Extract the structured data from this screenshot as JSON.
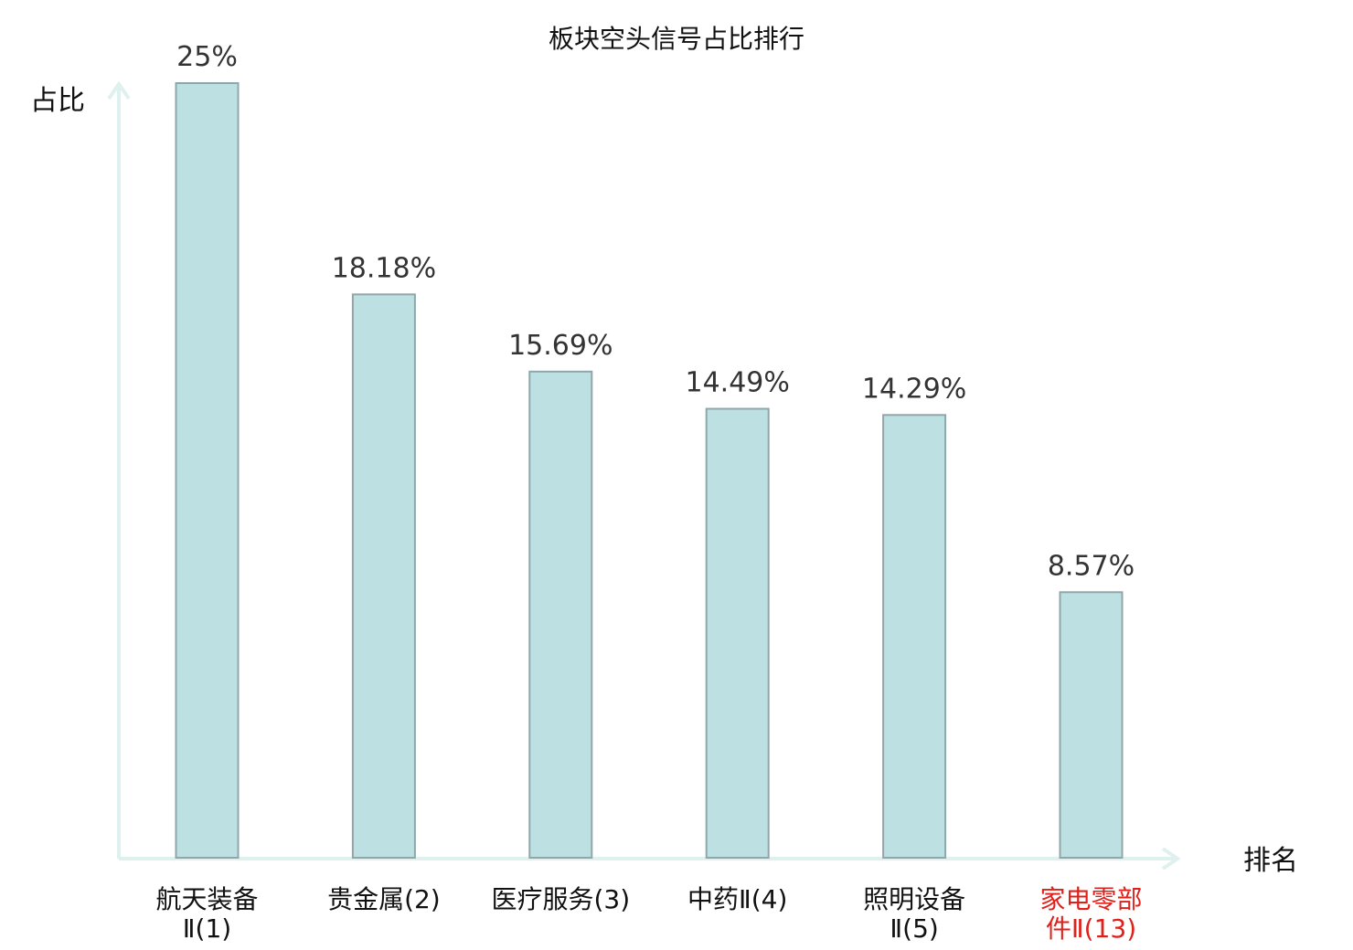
{
  "chart_data": {
    "type": "bar",
    "title": "板块空头信号占比排行",
    "ylabel": "占比",
    "xlabel": "排名",
    "ylim": [
      0,
      25
    ],
    "grid": false,
    "categories": [
      [
        "航天装备",
        "Ⅱ(1)"
      ],
      [
        "贵金属(2)"
      ],
      [
        "医疗服务(3)"
      ],
      [
        "中药Ⅱ(4)"
      ],
      [
        "照明设备",
        "Ⅱ(5)"
      ],
      [
        "家电零部",
        "件Ⅱ(13)"
      ]
    ],
    "values": [
      25,
      18.18,
      15.69,
      14.49,
      14.29,
      8.57
    ],
    "value_labels": [
      "25%",
      "18.18%",
      "15.69%",
      "14.49%",
      "14.29%",
      "8.57%"
    ],
    "highlight_index": 5,
    "colors": {
      "bar_fill": "#bde0e3",
      "bar_stroke": "#8fa7aa",
      "axis": "#dff1ef",
      "highlight_text": "#e0201b"
    }
  }
}
